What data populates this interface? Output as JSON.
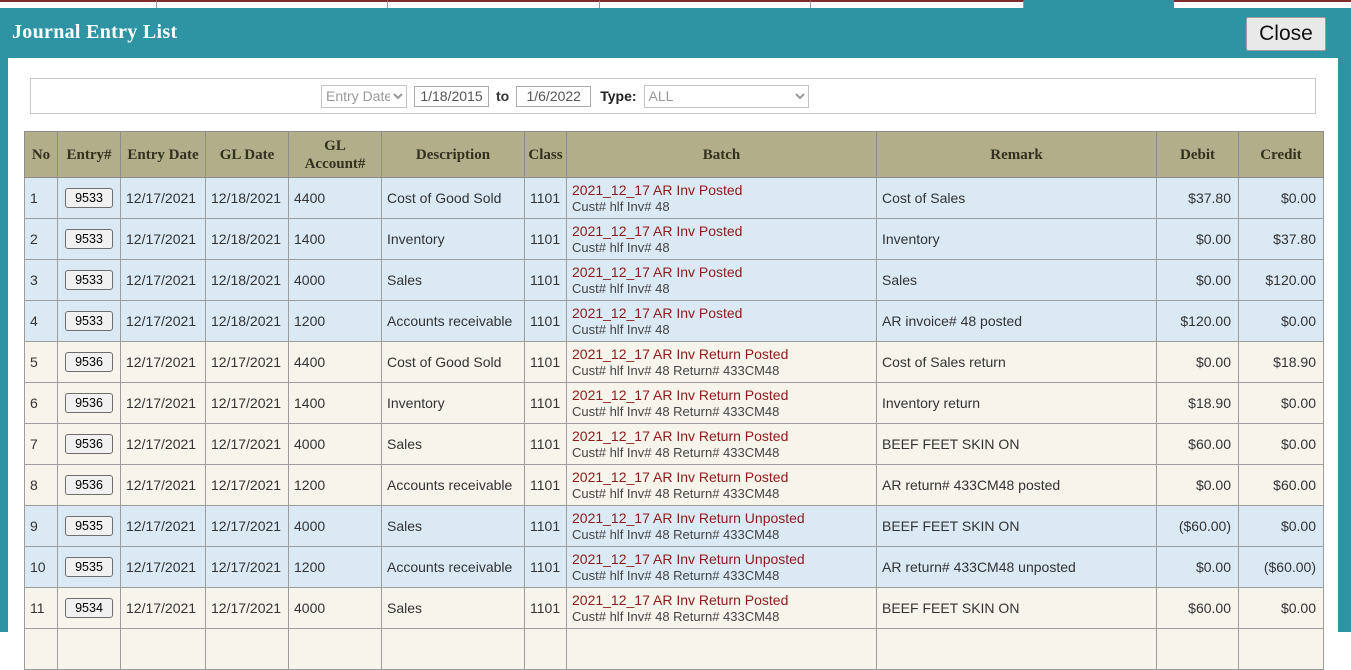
{
  "colors": {
    "accent_teal": "#2e94a3",
    "table_header_khaki": "#b3ae8a",
    "row_blue": "#dbe9f5",
    "row_cream": "#f7f4eb",
    "batch_red": "#8e1b1b",
    "tab_top_maroon": "#7d2b2b"
  },
  "header": {
    "title": "Journal Entry List",
    "close_label": "Close"
  },
  "filter": {
    "field_select": "Entry Date",
    "date_from": "1/18/2015",
    "to_label": "to",
    "date_to": "1/6/2022",
    "type_label": "Type:",
    "type_selected": "ALL"
  },
  "table": {
    "columns": [
      "No",
      "Entry#",
      "Entry Date",
      "GL Date",
      "GL\nAccount#",
      "Description",
      "Class",
      "Batch",
      "Remark",
      "Debit",
      "Credit"
    ],
    "rows": [
      {
        "no": "1",
        "entry": "9533",
        "entry_date": "12/17/2021",
        "gl_date": "12/18/2021",
        "gl_account": "4400",
        "description": "Cost of Good Sold",
        "class": "1101",
        "batch_title": "2021_12_17 AR Inv Posted",
        "batch_sub": "Cust# hlf Inv# 48",
        "remark": "Cost of Sales",
        "debit": "$37.80",
        "credit": "$0.00",
        "shade": "blue"
      },
      {
        "no": "2",
        "entry": "9533",
        "entry_date": "12/17/2021",
        "gl_date": "12/18/2021",
        "gl_account": "1400",
        "description": "Inventory",
        "class": "1101",
        "batch_title": "2021_12_17 AR Inv Posted",
        "batch_sub": "Cust# hlf Inv# 48",
        "remark": "Inventory",
        "debit": "$0.00",
        "credit": "$37.80",
        "shade": "blue"
      },
      {
        "no": "3",
        "entry": "9533",
        "entry_date": "12/17/2021",
        "gl_date": "12/18/2021",
        "gl_account": "4000",
        "description": "Sales",
        "class": "1101",
        "batch_title": "2021_12_17 AR Inv Posted",
        "batch_sub": "Cust# hlf Inv# 48",
        "remark": "Sales",
        "debit": "$0.00",
        "credit": "$120.00",
        "shade": "blue"
      },
      {
        "no": "4",
        "entry": "9533",
        "entry_date": "12/17/2021",
        "gl_date": "12/18/2021",
        "gl_account": "1200",
        "description": "Accounts receivable",
        "class": "1101",
        "batch_title": "2021_12_17 AR Inv Posted",
        "batch_sub": "Cust# hlf Inv# 48",
        "remark": "AR invoice# 48 posted",
        "debit": "$120.00",
        "credit": "$0.00",
        "shade": "blue"
      },
      {
        "no": "5",
        "entry": "9536",
        "entry_date": "12/17/2021",
        "gl_date": "12/17/2021",
        "gl_account": "4400",
        "description": "Cost of Good Sold",
        "class": "1101",
        "batch_title": "2021_12_17 AR Inv Return Posted",
        "batch_sub": "Cust# hlf Inv# 48 Return# 433CM48",
        "remark": "Cost of Sales return",
        "debit": "$0.00",
        "credit": "$18.90",
        "shade": "cream"
      },
      {
        "no": "6",
        "entry": "9536",
        "entry_date": "12/17/2021",
        "gl_date": "12/17/2021",
        "gl_account": "1400",
        "description": "Inventory",
        "class": "1101",
        "batch_title": "2021_12_17 AR Inv Return Posted",
        "batch_sub": "Cust# hlf Inv# 48 Return# 433CM48",
        "remark": "Inventory return",
        "debit": "$18.90",
        "credit": "$0.00",
        "shade": "cream"
      },
      {
        "no": "7",
        "entry": "9536",
        "entry_date": "12/17/2021",
        "gl_date": "12/17/2021",
        "gl_account": "4000",
        "description": "Sales",
        "class": "1101",
        "batch_title": "2021_12_17 AR Inv Return Posted",
        "batch_sub": "Cust# hlf Inv# 48 Return# 433CM48",
        "remark": "BEEF FEET SKIN ON",
        "debit": "$60.00",
        "credit": "$0.00",
        "shade": "cream"
      },
      {
        "no": "8",
        "entry": "9536",
        "entry_date": "12/17/2021",
        "gl_date": "12/17/2021",
        "gl_account": "1200",
        "description": "Accounts receivable",
        "class": "1101",
        "batch_title": "2021_12_17 AR Inv Return Posted",
        "batch_sub": "Cust# hlf Inv# 48 Return# 433CM48",
        "remark": "AR return# 433CM48 posted",
        "debit": "$0.00",
        "credit": "$60.00",
        "shade": "cream"
      },
      {
        "no": "9",
        "entry": "9535",
        "entry_date": "12/17/2021",
        "gl_date": "12/17/2021",
        "gl_account": "4000",
        "description": "Sales",
        "class": "1101",
        "batch_title": "2021_12_17 AR Inv Return Unposted",
        "batch_sub": "Cust# hlf Inv# 48 Return# 433CM48",
        "remark": "BEEF FEET SKIN ON",
        "debit": "($60.00)",
        "credit": "$0.00",
        "shade": "blue"
      },
      {
        "no": "10",
        "entry": "9535",
        "entry_date": "12/17/2021",
        "gl_date": "12/17/2021",
        "gl_account": "1200",
        "description": "Accounts receivable",
        "class": "1101",
        "batch_title": "2021_12_17 AR Inv Return Unposted",
        "batch_sub": "Cust# hlf Inv# 48 Return# 433CM48",
        "remark": "AR return# 433CM48 unposted",
        "debit": "$0.00",
        "credit": "($60.00)",
        "shade": "blue"
      },
      {
        "no": "11",
        "entry": "9534",
        "entry_date": "12/17/2021",
        "gl_date": "12/17/2021",
        "gl_account": "4000",
        "description": "Sales",
        "class": "1101",
        "batch_title": "2021_12_17 AR Inv Return Posted",
        "batch_sub": "Cust# hlf Inv# 48 Return# 433CM48",
        "remark": "BEEF FEET SKIN ON",
        "debit": "$60.00",
        "credit": "$0.00",
        "shade": "cream"
      },
      {
        "partial": true,
        "shade": "cream"
      }
    ]
  }
}
